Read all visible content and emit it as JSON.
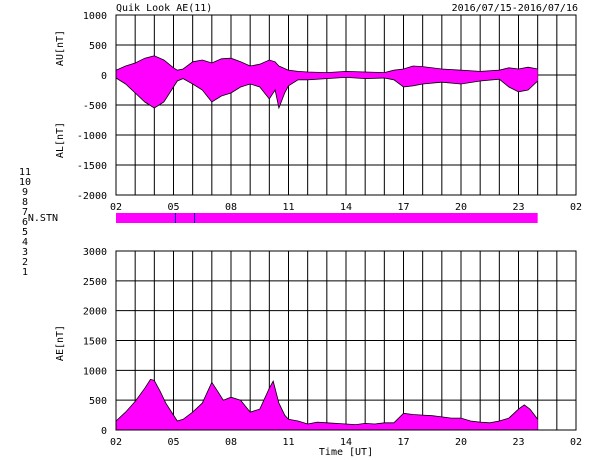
{
  "header": {
    "title": "Quik Look AE(11)",
    "date_range": "2016/07/15-2016/07/16"
  },
  "colors": {
    "fill": "#ff00ff",
    "outline": "#000000",
    "grid": "#000000",
    "marker": "#0000cc"
  },
  "station_legend": [
    {
      "label": "11",
      "color": "#33dddd"
    },
    {
      "label": "10",
      "color": "#ff00ff"
    },
    {
      "label": "9",
      "color": "#0000ff"
    },
    {
      "label": "8",
      "color": "#ffff66"
    },
    {
      "label": "7",
      "color": "#88ee88"
    },
    {
      "label": "6",
      "color": "#ff0000"
    },
    {
      "label": "5",
      "color": "#cccccc"
    },
    {
      "label": "4",
      "color": "#666666"
    },
    {
      "label": "3",
      "color": "#009999"
    },
    {
      "label": "2",
      "color": "#aa00aa"
    },
    {
      "label": "1",
      "color": "#0000aa"
    }
  ],
  "nstn_label": "N.STN",
  "xlabel": "Time [UT]",
  "chart_data": [
    {
      "type": "area",
      "name": "AU/AL",
      "ylabels": [
        "AU[nT]",
        "AL[nT]"
      ],
      "ylim": [
        -2000,
        1000
      ],
      "yticks": [
        "1000",
        "500",
        "0",
        "-500",
        "-1000",
        "-1500",
        "-2000"
      ],
      "xticks": [
        "02",
        "05",
        "08",
        "11",
        "14",
        "17",
        "20",
        "23",
        "02"
      ],
      "xlim": [
        2,
        26
      ],
      "grid": true,
      "au": {
        "x": [
          2,
          2.5,
          3,
          3.5,
          4,
          4.5,
          5,
          5.2,
          5.5,
          6,
          6.5,
          7,
          7.5,
          8,
          8.5,
          9,
          9.5,
          10,
          10.3,
          10.5,
          11,
          11.5,
          12,
          13,
          14,
          15,
          16,
          16.5,
          17,
          17.5,
          18,
          19,
          20,
          21,
          22,
          22.5,
          23,
          23.5,
          24
        ],
        "y": [
          80,
          150,
          200,
          280,
          320,
          250,
          120,
          80,
          100,
          220,
          250,
          200,
          270,
          280,
          220,
          150,
          180,
          250,
          220,
          150,
          80,
          60,
          50,
          40,
          60,
          50,
          40,
          80,
          100,
          150,
          140,
          100,
          80,
          60,
          80,
          120,
          100,
          130,
          100
        ]
      },
      "al": {
        "x": [
          2,
          2.5,
          3,
          3.5,
          4,
          4.5,
          5,
          5.2,
          5.5,
          6,
          6.5,
          7,
          7.5,
          8,
          8.5,
          9,
          9.5,
          10,
          10.3,
          10.5,
          10.8,
          11,
          11.5,
          12,
          13,
          14,
          15,
          16,
          16.5,
          17,
          17.5,
          18,
          19,
          20,
          21,
          22,
          22.5,
          23,
          23.5,
          24
        ],
        "y": [
          -50,
          -150,
          -300,
          -450,
          -550,
          -450,
          -200,
          -100,
          -60,
          -150,
          -250,
          -450,
          -350,
          -300,
          -200,
          -150,
          -200,
          -400,
          -250,
          -550,
          -300,
          -180,
          -80,
          -80,
          -60,
          -40,
          -60,
          -50,
          -80,
          -200,
          -180,
          -150,
          -120,
          -150,
          -100,
          -70,
          -200,
          -280,
          -250,
          -100
        ]
      }
    },
    {
      "type": "area",
      "name": "AE",
      "ylabel": "AE[nT]",
      "ylim": [
        0,
        3000
      ],
      "yticks": [
        "3000",
        "2500",
        "2000",
        "1500",
        "1000",
        "500",
        "0"
      ],
      "xticks": [
        "02",
        "05",
        "08",
        "11",
        "14",
        "17",
        "20",
        "23",
        "02"
      ],
      "xlim": [
        2,
        26
      ],
      "grid": true,
      "x": [
        2,
        2.5,
        3,
        3.5,
        3.8,
        4,
        4.3,
        4.6,
        5,
        5.2,
        5.5,
        6,
        6.5,
        7,
        7.3,
        7.6,
        8,
        8.5,
        9,
        9.5,
        10,
        10.2,
        10.5,
        10.8,
        11,
        11.5,
        12,
        12.5,
        13,
        13.5,
        14,
        14.5,
        15,
        15.5,
        16,
        16.5,
        17,
        17.5,
        18,
        18.5,
        19,
        19.5,
        20,
        20.5,
        21,
        21.5,
        22,
        22.5,
        23,
        23.3,
        23.6,
        24
      ],
      "y": [
        150,
        300,
        480,
        700,
        850,
        830,
        650,
        450,
        250,
        150,
        180,
        300,
        450,
        800,
        650,
        500,
        550,
        500,
        300,
        350,
        700,
        820,
        450,
        250,
        180,
        150,
        100,
        130,
        120,
        110,
        100,
        90,
        110,
        100,
        120,
        120,
        280,
        260,
        250,
        240,
        220,
        200,
        200,
        150,
        130,
        120,
        150,
        200,
        350,
        420,
        350,
        180
      ]
    }
  ],
  "stations_bar": {
    "x_start": 2,
    "x_end": 24,
    "markers": [
      5.1,
      6.1
    ]
  }
}
